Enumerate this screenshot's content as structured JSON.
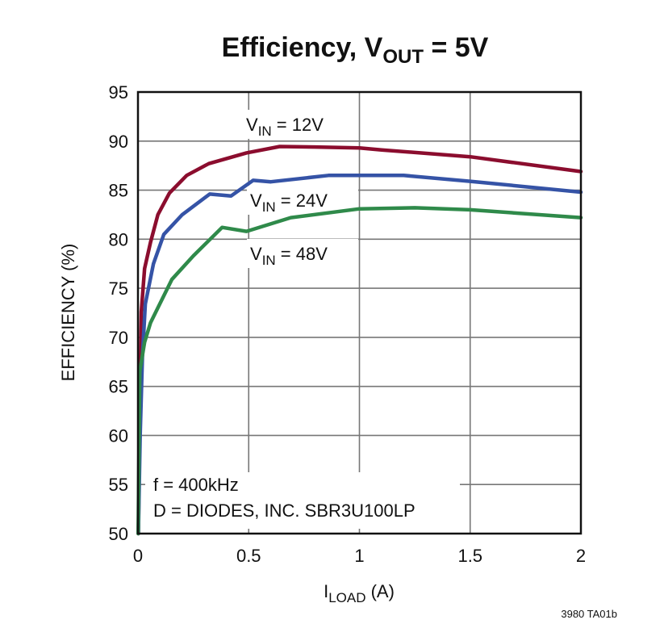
{
  "chart_data": {
    "type": "line",
    "title": "Efficiency, V",
    "title_sub": "OUT",
    "title_tail": " = 5V",
    "xlabel": "I",
    "xlabel_sub": "LOAD",
    "xlabel_tail": " (A)",
    "ylabel": "EFFICIENCY (%)",
    "xlim": [
      0,
      2
    ],
    "ylim": [
      50,
      95
    ],
    "xticks": [
      0,
      0.5,
      1,
      1.5,
      2
    ],
    "xtick_labels": [
      "0",
      "0.5",
      "1",
      "1.5",
      "2"
    ],
    "yticks": [
      50,
      55,
      60,
      65,
      70,
      75,
      80,
      85,
      90,
      95
    ],
    "grid": true,
    "series": [
      {
        "name": "V",
        "name_sub": "IN",
        "name_tail": " = 12V",
        "color": "#8b0d2e",
        "x": [
          0.002,
          0.008,
          0.015,
          0.03,
          0.057,
          0.09,
          0.142,
          0.22,
          0.32,
          0.49,
          0.64,
          0.8,
          1.0,
          1.1,
          1.5,
          2.0
        ],
        "y": [
          50,
          62,
          72.6,
          77,
          79.7,
          82.5,
          84.7,
          86.5,
          87.7,
          88.8,
          89.45,
          89.4,
          89.3,
          89.1,
          88.4,
          86.9
        ]
      },
      {
        "name": "V",
        "name_sub": "IN",
        "name_tail": " = 24V",
        "color": "#3553a6",
        "x": [
          0.002,
          0.01,
          0.02,
          0.033,
          0.07,
          0.117,
          0.2,
          0.324,
          0.42,
          0.52,
          0.6,
          0.86,
          1.2,
          1.5,
          2.0
        ],
        "y": [
          50,
          60,
          68,
          73.4,
          77.5,
          80.5,
          82.5,
          84.6,
          84.4,
          86.0,
          85.85,
          86.5,
          86.5,
          85.9,
          84.8
        ]
      },
      {
        "name": "V",
        "name_sub": "IN",
        "name_tail": " = 48V",
        "color": "#2f8a4a",
        "x": [
          0.001,
          0.008,
          0.03,
          0.057,
          0.153,
          0.25,
          0.38,
          0.49,
          0.69,
          1.0,
          1.25,
          1.5,
          2.0
        ],
        "y": [
          50,
          66.5,
          69.5,
          71.5,
          75.9,
          78.3,
          81.2,
          80.8,
          82.2,
          83.1,
          83.2,
          83.0,
          82.2
        ]
      }
    ],
    "annotations": [
      "f = 400kHz",
      "D = DIODES, INC. SBR3U100LP"
    ],
    "figure_id": "3980 TA01b"
  }
}
